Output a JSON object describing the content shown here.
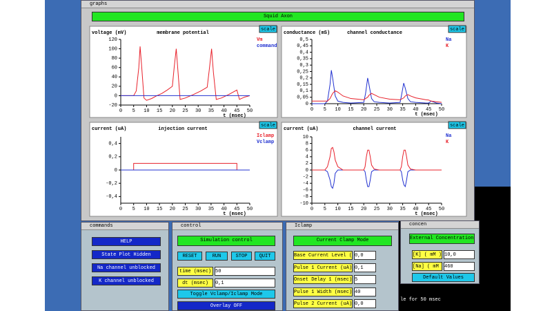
{
  "graphs_window": {
    "title": "graphs",
    "banner": "Squid Axon",
    "scale_button": "scale"
  },
  "chart_data": [
    {
      "type": "line",
      "title": "membrane potential",
      "y_label": "voltage (mV)",
      "x_label": "t (msec)",
      "x": [
        0,
        5,
        6,
        7,
        7.5,
        8,
        9,
        10,
        12,
        14,
        16,
        18,
        20,
        20.7,
        21.5,
        22.2,
        23,
        25,
        28,
        31,
        33.5,
        34.3,
        35.2,
        35.9,
        37,
        39,
        42,
        45,
        46,
        48,
        50
      ],
      "series": [
        {
          "name": "Vm",
          "color": "#e8202a",
          "values": [
            0,
            0,
            10,
            60,
            105,
            70,
            -5,
            -10,
            -6,
            0,
            5,
            12,
            20,
            60,
            100,
            50,
            -8,
            -5,
            2,
            10,
            18,
            55,
            100,
            50,
            -8,
            -5,
            3,
            12,
            -8,
            -3,
            0
          ]
        },
        {
          "name": "command",
          "color": "#2030d0",
          "values": [
            0,
            0,
            0,
            0,
            0,
            0,
            0,
            0,
            0,
            0,
            0,
            0,
            0,
            0,
            0,
            0,
            0,
            0,
            0,
            0,
            0,
            0,
            0,
            0,
            0,
            0,
            0,
            0,
            0,
            0,
            0
          ]
        }
      ],
      "xlim": [
        0,
        50
      ],
      "xticks": [
        0,
        5,
        10,
        15,
        20,
        25,
        30,
        35,
        40,
        45,
        50
      ],
      "ylim": [
        -20,
        120
      ],
      "yticks": [
        -20,
        0,
        20,
        40,
        60,
        80,
        100,
        120
      ]
    },
    {
      "type": "line",
      "title": "channel conductance",
      "y_label": "conductance (mS)",
      "x_label": "t (msec)",
      "x": [
        0,
        5,
        6,
        7,
        7.5,
        8,
        9,
        10,
        12,
        15,
        20,
        20.7,
        21.5,
        22,
        23,
        24,
        26,
        30,
        34,
        34.5,
        35.4,
        36,
        37,
        38,
        40,
        44,
        45,
        46,
        48,
        50
      ],
      "series": [
        {
          "name": "Na",
          "color": "#2030d0",
          "values": [
            0,
            0,
            0.02,
            0.15,
            0.26,
            0.2,
            0.06,
            0.02,
            0.01,
            0.005,
            0.01,
            0.08,
            0.2,
            0.15,
            0.04,
            0.015,
            0.01,
            0.005,
            0.01,
            0.06,
            0.16,
            0.12,
            0.04,
            0.015,
            0.01,
            0.005,
            0.005,
            0.02,
            0.005,
            0
          ]
        },
        {
          "name": "K",
          "color": "#e8202a",
          "values": [
            0.02,
            0.02,
            0.02,
            0.04,
            0.06,
            0.08,
            0.1,
            0.09,
            0.06,
            0.04,
            0.03,
            0.04,
            0.05,
            0.065,
            0.08,
            0.07,
            0.05,
            0.035,
            0.03,
            0.035,
            0.045,
            0.06,
            0.07,
            0.06,
            0.045,
            0.03,
            0.028,
            0.02,
            0.015,
            0.01
          ]
        }
      ],
      "xlim": [
        0,
        50
      ],
      "xticks": [
        0,
        5,
        10,
        15,
        20,
        25,
        30,
        35,
        40,
        45,
        50
      ],
      "ylim": [
        0,
        0.5
      ],
      "yticks": [
        0,
        {
          "value": 0.05,
          "label": "0,05"
        },
        {
          "value": 0.1,
          "label": "0,1"
        },
        {
          "value": 0.15,
          "label": "0,15"
        },
        {
          "value": 0.2,
          "label": "0,2"
        },
        {
          "value": 0.25,
          "label": "0,25"
        },
        {
          "value": 0.3,
          "label": "0,3"
        },
        {
          "value": 0.35,
          "label": "0,35"
        },
        {
          "value": 0.4,
          "label": "0,4"
        },
        {
          "value": 0.45,
          "label": "0,45"
        },
        {
          "value": 0.5,
          "label": "0,5"
        }
      ]
    },
    {
      "type": "line",
      "title": "injection current",
      "y_label": "current (uA)",
      "x_label": "t (msec)",
      "x": [
        0,
        5,
        5,
        45,
        45,
        50
      ],
      "series": [
        {
          "name": "Iclamp",
          "color": "#e8202a",
          "values": [
            0,
            0,
            0.1,
            0.1,
            0,
            0
          ]
        },
        {
          "name": "Vclamp",
          "color": "#2030d0",
          "values": [
            0,
            0,
            0,
            0,
            0,
            0
          ]
        }
      ],
      "xlim": [
        0,
        50
      ],
      "xticks": [
        0,
        5,
        10,
        15,
        20,
        25,
        30,
        35,
        40,
        45,
        50
      ],
      "ylim": [
        -0.5,
        0.5
      ],
      "yticks": [
        {
          "value": -0.4,
          "label": "-0,4"
        },
        {
          "value": -0.2,
          "label": "-0,2"
        },
        0,
        {
          "value": 0.2,
          "label": "0,2"
        },
        {
          "value": 0.4,
          "label": "0,4"
        }
      ]
    },
    {
      "type": "line",
      "title": "channel current",
      "y_label": "current (uA)",
      "x_label": "t (msec)",
      "x": [
        0,
        5,
        6,
        7,
        7.5,
        8,
        8.5,
        9,
        10,
        12,
        20,
        20.5,
        21,
        21.5,
        22,
        22.5,
        23,
        24,
        26,
        34,
        34.5,
        35,
        35.5,
        36,
        36.5,
        37,
        38,
        40,
        50
      ],
      "series": [
        {
          "name": "Na",
          "color": "#2030d0",
          "values": [
            0,
            0,
            -0.5,
            -3,
            -5,
            -5.5,
            -4,
            -1,
            0,
            0,
            0,
            -0.5,
            -3,
            -5,
            -5,
            -3,
            -0.5,
            0,
            0,
            0,
            -0.5,
            -3,
            -4.5,
            -5,
            -3,
            -0.5,
            0,
            0,
            0
          ]
        },
        {
          "name": "K",
          "color": "#e8202a",
          "values": [
            0,
            0,
            1,
            4,
            6.5,
            6.8,
            5.5,
            3,
            1,
            0,
            0,
            1,
            4,
            6,
            6,
            4,
            1.5,
            0.3,
            0,
            0,
            1,
            4,
            6,
            6,
            4,
            1.5,
            0.3,
            0,
            0
          ]
        }
      ],
      "xlim": [
        0,
        50
      ],
      "xticks": [
        0,
        5,
        10,
        15,
        20,
        25,
        30,
        35,
        40,
        45,
        50
      ],
      "ylim": [
        -10,
        10
      ],
      "yticks": [
        -10,
        -8,
        -6,
        -4,
        -2,
        0,
        2,
        4,
        6,
        8,
        10
      ]
    }
  ],
  "windows": {
    "commands": {
      "title": "commands",
      "buttons": [
        "HELP",
        "State Plot Hidden",
        "Na channel unblocked",
        "K channel unblocked"
      ]
    },
    "control": {
      "title": "control",
      "header": "Simulation control",
      "buttons": [
        "RESET",
        "RUN",
        "STOP",
        "QUIT"
      ],
      "fields": [
        {
          "label": "time (msec)",
          "value": "50"
        },
        {
          "label": "dt (msec)",
          "value": "0,1"
        }
      ],
      "toggle": "Toggle Vclamp/Iclamp Mode",
      "overlay": "Overlay OFF"
    },
    "iclamp": {
      "title": "Iclamp",
      "header": "Current Clamp Mode",
      "fields": [
        {
          "label": "Base Current Level (uA)",
          "value": "0,0"
        },
        {
          "label": "Pulse 1 Current (uA)",
          "value": "0,1"
        },
        {
          "label": "Onset Delay 1 (msec)",
          "value": "5"
        },
        {
          "label": "Pulse 1 Width (msec)",
          "value": "40"
        },
        {
          "label": "Pulse 2 Current (uA)",
          "value": "0,0"
        }
      ]
    },
    "concen": {
      "title": "concen",
      "header": "External Concentrations",
      "fields": [
        {
          "label": "[K] ( mM )",
          "value": "10,0"
        },
        {
          "label": "[Na] ( mM )",
          "value": "460"
        }
      ],
      "button": "Default Values"
    }
  },
  "terminal": {
    "text": "le for 50 msec"
  }
}
